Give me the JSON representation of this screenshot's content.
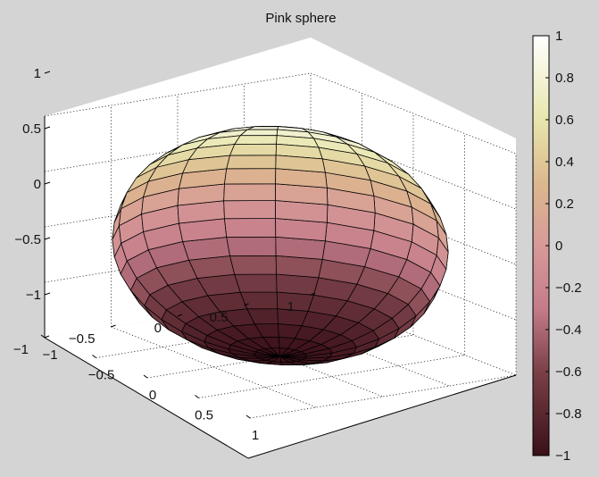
{
  "chart_data": {
    "type": "surface",
    "title": "Pink sphere",
    "colormap": "pink",
    "surface": {
      "shape": "sphere",
      "radius": 1,
      "meridians": 20,
      "parallels": 20,
      "color_by": "z",
      "edge_color": "#000000"
    },
    "axes": {
      "x": {
        "lim": [
          -1,
          1
        ],
        "ticks": [
          -1,
          -0.5,
          0,
          0.5,
          1
        ],
        "tick_labels": [
          "−1",
          "−0.5",
          "0",
          "0.5",
          "1"
        ]
      },
      "y": {
        "lim": [
          -1,
          1
        ],
        "ticks": [
          -1,
          -0.5,
          0,
          0.5,
          1
        ],
        "tick_labels": [
          "−1",
          "−0.5",
          "0",
          "0.5",
          "1"
        ]
      },
      "z": {
        "lim": [
          -1,
          1
        ],
        "ticks": [
          -1,
          -0.5,
          0,
          0.5,
          1
        ],
        "tick_labels": [
          "−1",
          "−0.5",
          "0",
          "0.5",
          "1"
        ]
      }
    },
    "grid": true,
    "colorbar": {
      "placement": "right",
      "lim": [
        -1,
        1
      ],
      "ticks": [
        1,
        0.8,
        0.6,
        0.4,
        0.2,
        0,
        -0.2,
        -0.4,
        -0.6,
        -0.8,
        -1
      ],
      "tick_labels": [
        "1",
        "0.8",
        "0.6",
        "0.4",
        "0.2",
        "0",
        "−0.2",
        "−0.4",
        "−0.6",
        "−0.8",
        "−1"
      ],
      "colormap_stops": [
        {
          "value": -1,
          "color": "#3a1018"
        },
        {
          "value": -0.6,
          "color": "#7a4048"
        },
        {
          "value": -0.3,
          "color": "#c47c8a"
        },
        {
          "value": 0,
          "color": "#d79a98"
        },
        {
          "value": 0.3,
          "color": "#dcb88e"
        },
        {
          "value": 0.6,
          "color": "#e8e6ad"
        },
        {
          "value": 1,
          "color": "#ffffff"
        }
      ]
    }
  }
}
